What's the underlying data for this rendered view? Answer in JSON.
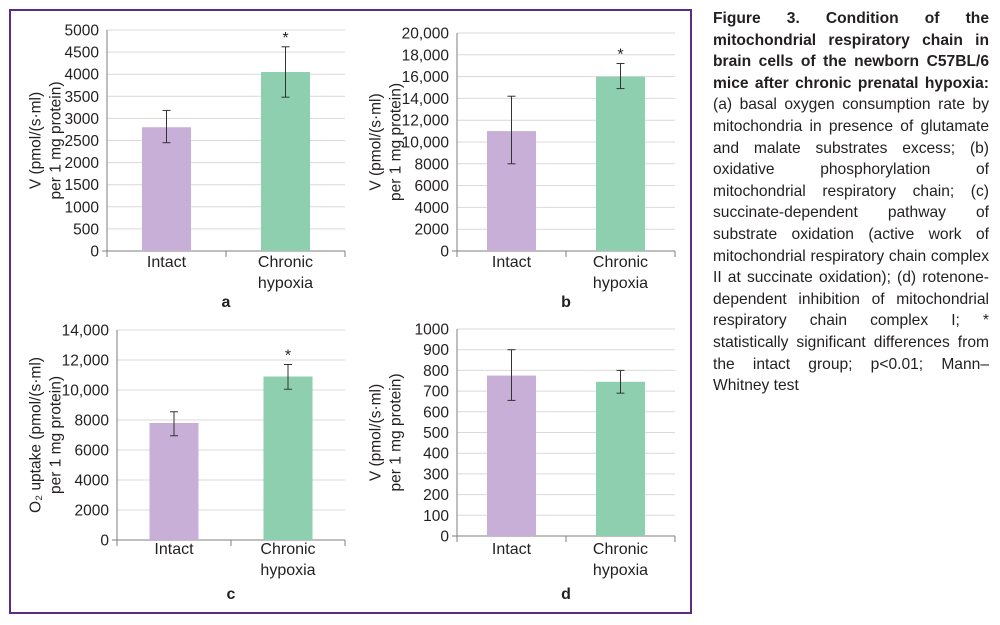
{
  "caption": {
    "title": "Figure 3. Condition of the mitochondrial respiratory chain in brain cells of the newborn C57BL/6 mice after chronic prenatal hypoxia:",
    "body": "(a) basal oxygen consumption rate by mitochondria in presence of glutamate and malate substrates excess; (b) oxidative phosphorylation of mitochondrial respiratory chain; (c) succinate-dependent pathway of substrate oxidation (active work of mitochondrial respiratory chain complex II at succinate oxidation); (d) rotenone-dependent inhibition of mitochondrial respiratory chain complex I; * statistically significant differences from the intact group; p<0.01; Mann–Whitney test"
  },
  "colors": {
    "intact": "#c8afd8",
    "chronic_hypoxia": "#8dcfae",
    "frame": "#5b2c83",
    "grid": "#d9d9d9"
  },
  "chart_data": [
    {
      "type": "bar",
      "panel_label": "a",
      "ylabel": [
        "V (pmol/(s·ml)",
        "per 1 mg protein)"
      ],
      "categories": [
        [
          "Intact"
        ],
        [
          "Chronic",
          "hypoxia"
        ]
      ],
      "values": [
        2800,
        4050
      ],
      "errors": [
        [
          2450,
          3180
        ],
        [
          3480,
          4620
        ]
      ],
      "significance": [
        "",
        "*"
      ],
      "ylim": [
        0,
        5000
      ],
      "yticks": [
        0,
        500,
        1000,
        1500,
        2000,
        2500,
        3000,
        3500,
        4000,
        4500,
        5000
      ],
      "ytick_labels": [
        "0",
        "500",
        "1000",
        "1500",
        "2000",
        "2500",
        "3000",
        "3500",
        "4000",
        "4500",
        "5000"
      ],
      "grid": true
    },
    {
      "type": "bar",
      "panel_label": "b",
      "ylabel": [
        "V (pmol/(s·ml)",
        "per 1 mg protein)"
      ],
      "categories": [
        [
          "Intact"
        ],
        [
          "Chronic",
          "hypoxia"
        ]
      ],
      "values": [
        11000,
        16000
      ],
      "errors": [
        [
          8000,
          14200
        ],
        [
          14900,
          17200
        ]
      ],
      "significance": [
        "",
        "*"
      ],
      "ylim": [
        0,
        20000
      ],
      "yticks": [
        0,
        2000,
        4000,
        6000,
        8000,
        10000,
        12000,
        14000,
        16000,
        18000,
        20000
      ],
      "ytick_labels": [
        "0",
        "2000",
        "4000",
        "6000",
        "8000",
        "10,000",
        "12,000",
        "14,000",
        "16,000",
        "18,000",
        "20,000"
      ],
      "grid": true
    },
    {
      "type": "bar",
      "panel_label": "c",
      "ylabel": [
        "O₂ uptake (pmol/(s·ml)",
        "per 1 mg protein)"
      ],
      "categories": [
        [
          "Intact"
        ],
        [
          "Chronic",
          "hypoxia"
        ]
      ],
      "values": [
        7800,
        10900
      ],
      "errors": [
        [
          6950,
          8550
        ],
        [
          10050,
          11700
        ]
      ],
      "significance": [
        "",
        "*"
      ],
      "ylim": [
        0,
        14000
      ],
      "yticks": [
        0,
        2000,
        4000,
        6000,
        8000,
        10000,
        12000,
        14000
      ],
      "ytick_labels": [
        "0",
        "2000",
        "4000",
        "6000",
        "8000",
        "10,000",
        "12,000",
        "14,000"
      ],
      "grid": true
    },
    {
      "type": "bar",
      "panel_label": "d",
      "ylabel": [
        "V (pmol/(s·ml)",
        "per 1 mg protein)"
      ],
      "categories": [
        [
          "Intact"
        ],
        [
          "Chronic",
          "hypoxia"
        ]
      ],
      "values": [
        775,
        745
      ],
      "errors": [
        [
          655,
          900
        ],
        [
          690,
          800
        ]
      ],
      "significance": [
        "",
        ""
      ],
      "ylim": [
        0,
        1000
      ],
      "yticks": [
        0,
        100,
        200,
        300,
        400,
        500,
        600,
        700,
        800,
        900,
        1000
      ],
      "ytick_labels": [
        "0",
        "100",
        "200",
        "300",
        "400",
        "500",
        "600",
        "700",
        "800",
        "900",
        "1000"
      ],
      "grid": true
    }
  ]
}
